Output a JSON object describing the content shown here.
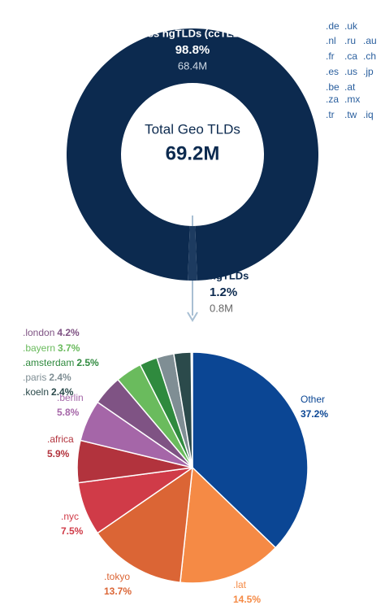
{
  "chart_data": [
    {
      "type": "donut",
      "categories": [
        "Less ngTLDs (ccTLDs)",
        "ngTLDs"
      ],
      "values": [
        98.8,
        1.2
      ],
      "value_labels": [
        "98.8%",
        "1.2%"
      ],
      "count_labels": [
        "68.4M",
        "0.8M"
      ],
      "colors": [
        "#0c2a4f",
        "#1d3b60"
      ],
      "center_label": "Total Geo TLDs",
      "center_value": "69.2M",
      "annotations": [
        [
          ".de",
          ".uk"
        ],
        [
          ".nl",
          ".ru",
          ".au"
        ],
        [
          ".fr",
          ".ca",
          ".ch"
        ],
        [
          ".es",
          ".us",
          ".jp"
        ],
        [
          ".be",
          ".at"
        ],
        [
          ".za",
          ".mx"
        ],
        [
          ".tr",
          ".tw",
          ".iq"
        ]
      ]
    },
    {
      "type": "pie",
      "categories": [
        "Other",
        ".lat",
        ".tokyo",
        ".nyc",
        ".africa",
        ".berlin",
        ".london",
        ".bayern",
        ".amsterdam",
        ".paris",
        ".koeln"
      ],
      "values": [
        37.2,
        14.5,
        13.7,
        7.5,
        5.9,
        5.8,
        4.2,
        3.7,
        2.5,
        2.4,
        2.4
      ],
      "value_labels": [
        "37.2%",
        "14.5%",
        "13.7%",
        "7.5%",
        "5.9%",
        "5.8%",
        "4.2%",
        "3.7%",
        "2.5%",
        "2.4%",
        "2.4%"
      ],
      "colors": [
        "#0b4694",
        "#f58a45",
        "#db6535",
        "#d03b48",
        "#b2333d",
        "#a566a8",
        "#7f5384",
        "#6abb5d",
        "#2f8a3e",
        "#7f8e94",
        "#2b4a4b"
      ]
    }
  ]
}
